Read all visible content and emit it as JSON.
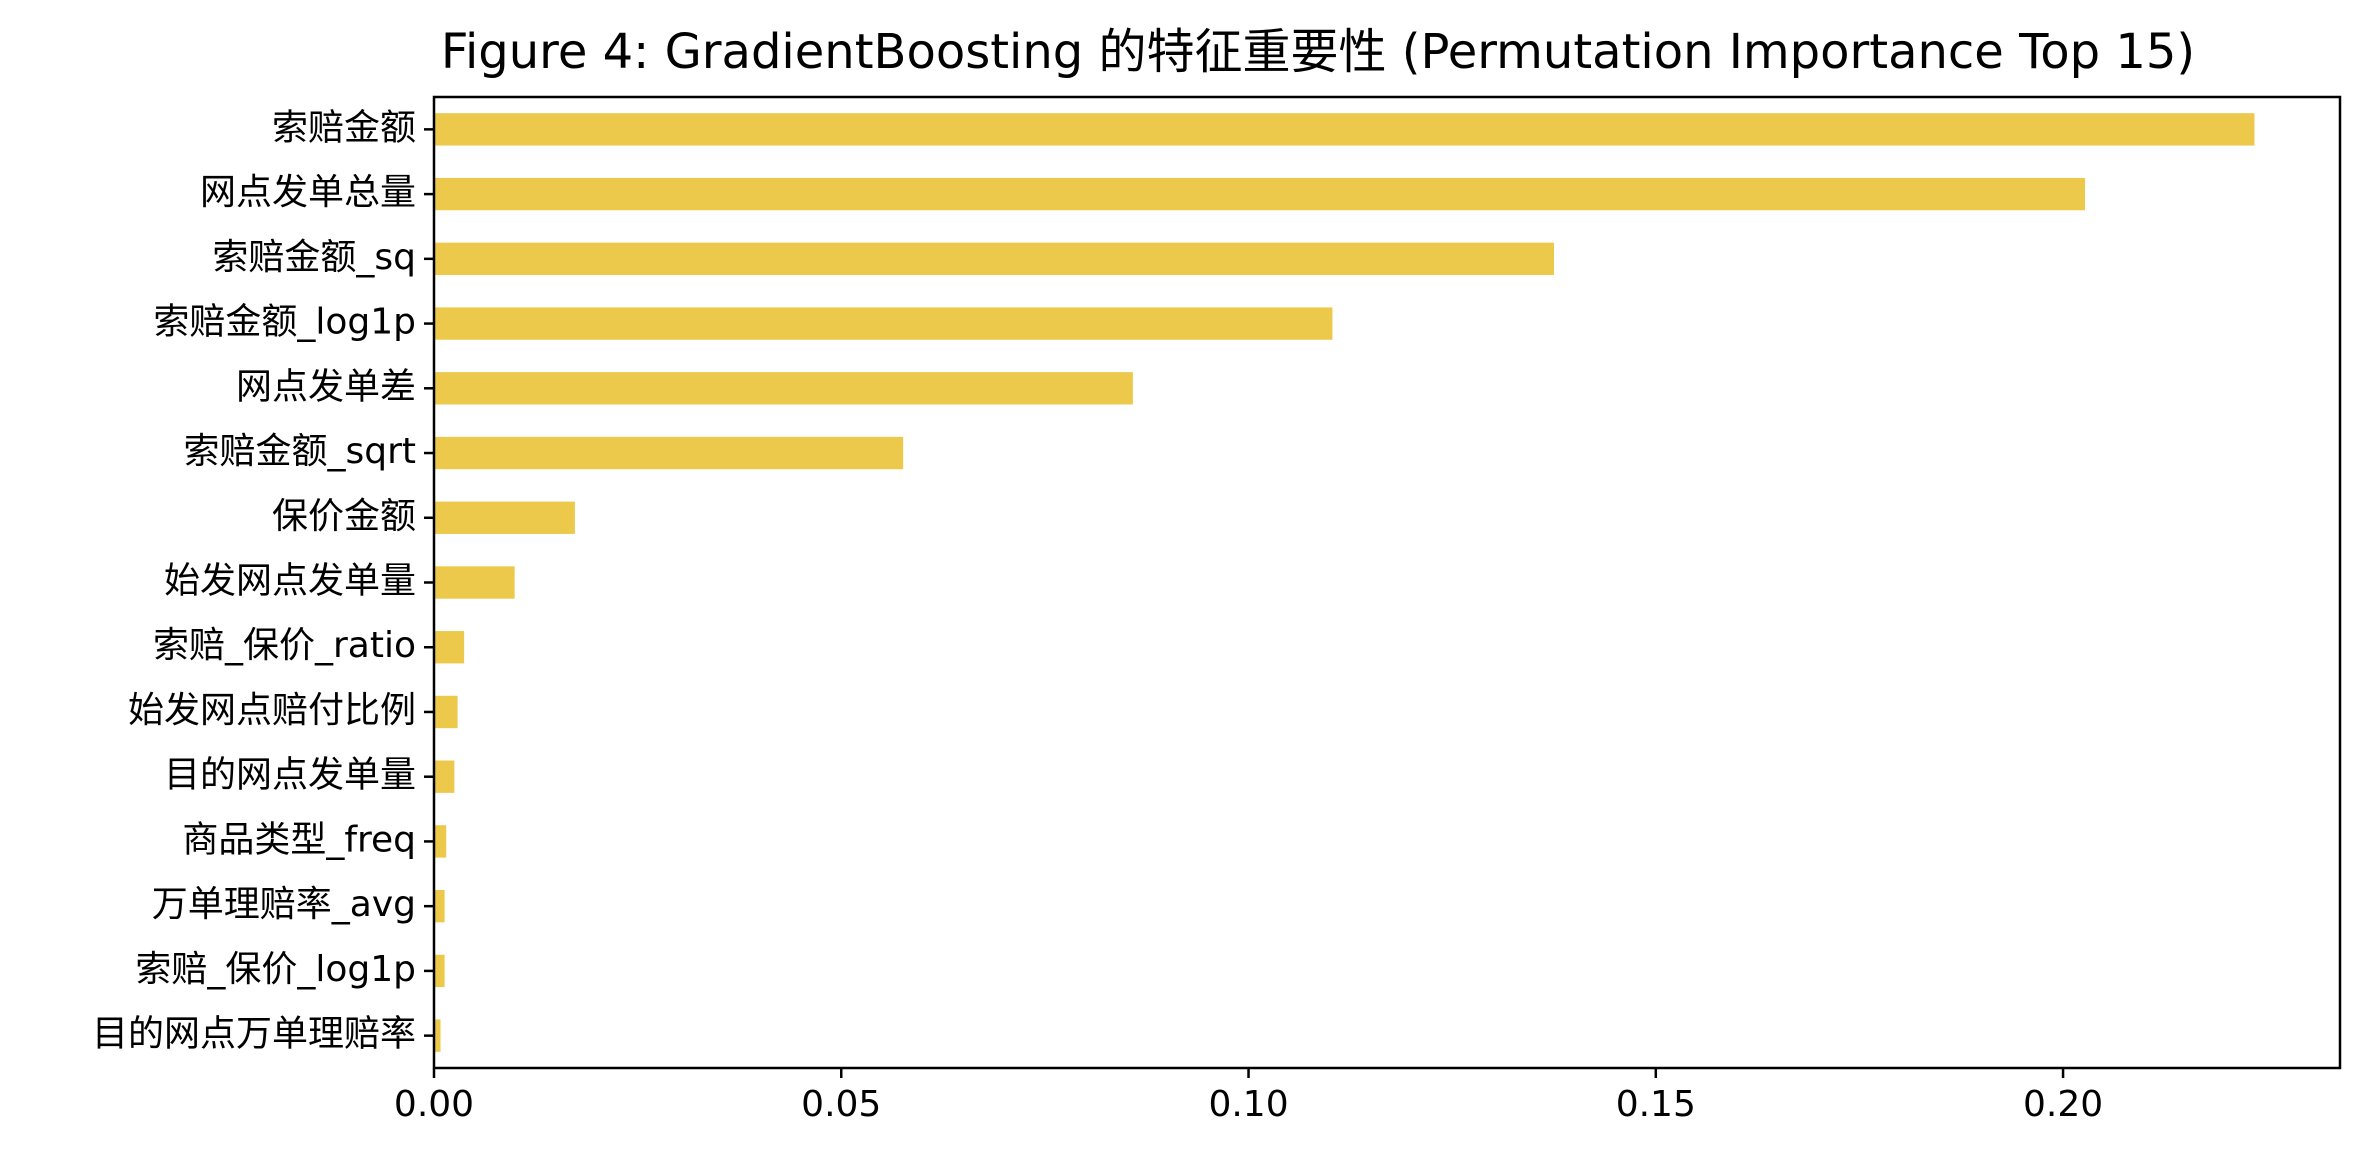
{
  "chart_data": {
    "type": "bar",
    "orientation": "horizontal",
    "title": "Figure 4: GradientBoosting 的特征重要性 (Permutation Importance Top 15)",
    "xlabel": "",
    "ylabel": "",
    "categories": [
      "索赔金额",
      "网点发单总量",
      "索赔金额_sq",
      "索赔金额_log1p",
      "网点发单差",
      "索赔金额_sqrt",
      "保价金额",
      "始发网点发单量",
      "索赔_保价_ratio",
      "始发网点赔付比例",
      "目的网点发单量",
      "商品类型_freq",
      "万单理赔率_avg",
      "索赔_保价_log1p",
      "目的网点万单理赔率"
    ],
    "values": [
      0.2235,
      0.2027,
      0.1375,
      0.1103,
      0.0858,
      0.0576,
      0.0173,
      0.0099,
      0.0037,
      0.0029,
      0.0025,
      0.0015,
      0.0013,
      0.0013,
      0.0008
    ],
    "xlim": [
      0,
      0.234
    ],
    "xticks": [
      0.0,
      0.05,
      0.1,
      0.15,
      0.2
    ],
    "xtick_labels": [
      "0.00",
      "0.05",
      "0.10",
      "0.15",
      "0.20"
    ],
    "bar_color": "#ecc94b",
    "grid": false,
    "legend": "none"
  }
}
